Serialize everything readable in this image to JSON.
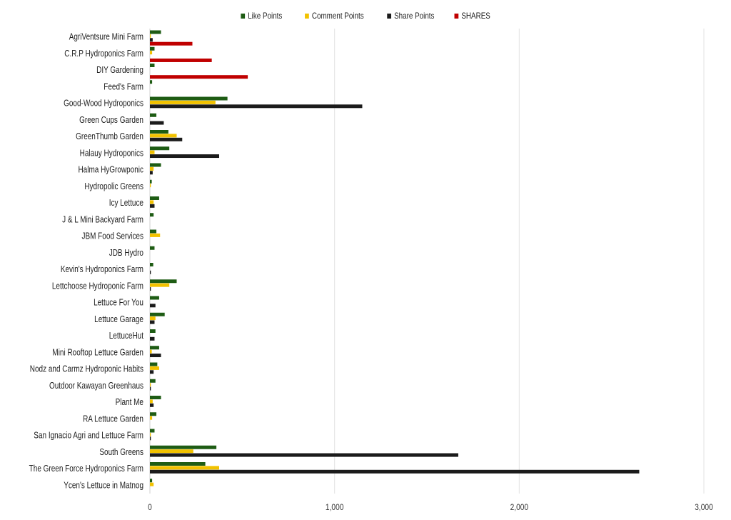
{
  "chart_data": {
    "type": "bar",
    "orientation": "horizontal",
    "xlim": [
      0,
      3000
    ],
    "x_ticks": [
      "0",
      "1,000",
      "2,000",
      "3,000"
    ],
    "x_tick_values": [
      0,
      1000,
      2000,
      3000
    ],
    "grid": "vertical",
    "legend_position": "top-center",
    "categories": [
      "AgriVentsure Mini Farm",
      "C.R.P Hydroponics Farm",
      "DIY Gardening",
      "Feed's Farm",
      "Good-Wood Hydroponics",
      "Green Cups Garden",
      "GreenThumb Garden",
      "Halauy Hydroponics",
      "Halma HyGrowponic",
      "Hydropolic Greens",
      "Icy Lettuce",
      "J & L Mini Backyard Farm",
      "JBM Food Services",
      "JDB Hydro",
      "Kevin's Hydroponics Farm",
      "Lettchoose Hydroponic Farm",
      "Lettuce For You",
      "Lettuce Garage",
      "LettuceHut",
      "Mini Rooftop Lettuce Garden",
      "Nodz and Carmz Hydroponic Habits",
      "Outdoor Kawayan Greenhaus",
      "Plant Me",
      "RA Lettuce Garden",
      "San Ignacio Agri and Lettuce Farm",
      "South Greens",
      "The Green Force Hydroponics Farm",
      "Ycen's Lettuce in Matnog"
    ],
    "series": [
      {
        "name": "Like Points",
        "color": "#1e5c14",
        "values": [
          60,
          25,
          25,
          12,
          420,
          35,
          100,
          105,
          60,
          10,
          50,
          20,
          35,
          25,
          18,
          145,
          50,
          80,
          30,
          50,
          40,
          30,
          60,
          35,
          25,
          360,
          300,
          12
        ]
      },
      {
        "name": "Comment Points",
        "color": "#f2c200",
        "values": [
          5,
          12,
          0,
          0,
          355,
          0,
          145,
          25,
          20,
          5,
          20,
          0,
          55,
          0,
          0,
          105,
          0,
          30,
          0,
          10,
          50,
          5,
          15,
          12,
          5,
          235,
          375,
          20
        ]
      },
      {
        "name": "Share Points",
        "color": "#1b1b1b",
        "values": [
          15,
          0,
          0,
          0,
          1150,
          75,
          175,
          375,
          15,
          0,
          25,
          0,
          0,
          0,
          5,
          5,
          30,
          25,
          25,
          60,
          20,
          5,
          20,
          0,
          5,
          1670,
          2650,
          0
        ]
      },
      {
        "name": "SHARES",
        "color": "#c00000",
        "values": [
          230,
          335,
          530,
          0,
          0,
          0,
          0,
          0,
          0,
          0,
          0,
          0,
          0,
          0,
          0,
          0,
          0,
          0,
          0,
          0,
          0,
          0,
          0,
          0,
          0,
          0,
          0,
          0
        ]
      }
    ]
  }
}
